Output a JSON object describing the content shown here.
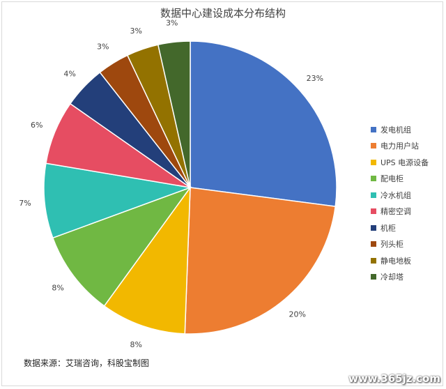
{
  "chart_data": {
    "type": "pie",
    "title": "数据中心建设成本分布结构",
    "slices": [
      {
        "label": "发电机组",
        "value": 23,
        "display": "23%",
        "color": "#4472c4"
      },
      {
        "label": "电力用户站",
        "value": 20,
        "display": "20%",
        "color": "#ed7d31"
      },
      {
        "label": "UPS 电源设备",
        "value": 8,
        "display": "8%",
        "color": "#f2b800"
      },
      {
        "label": "配电柜",
        "value": 8,
        "display": "8%",
        "color": "#70b843"
      },
      {
        "label": "冷水机组",
        "value": 7,
        "display": "7%",
        "color": "#2fbfb2"
      },
      {
        "label": "精密空调",
        "value": 6,
        "display": "6%",
        "color": "#e64d62"
      },
      {
        "label": "机柜",
        "value": 4,
        "display": "4%",
        "color": "#233f7a"
      },
      {
        "label": "列头柜",
        "value": 3,
        "display": "3%",
        "color": "#9e480e"
      },
      {
        "label": "静电地板",
        "value": 3,
        "display": "3%",
        "color": "#937200"
      },
      {
        "label": "冷却塔",
        "value": 3,
        "display": "3%",
        "color": "#43682b"
      }
    ],
    "legend_position": "right"
  },
  "source_note": "数据来源：艾瑞咨询，科股宝制图",
  "watermark": "www.365jz.com"
}
